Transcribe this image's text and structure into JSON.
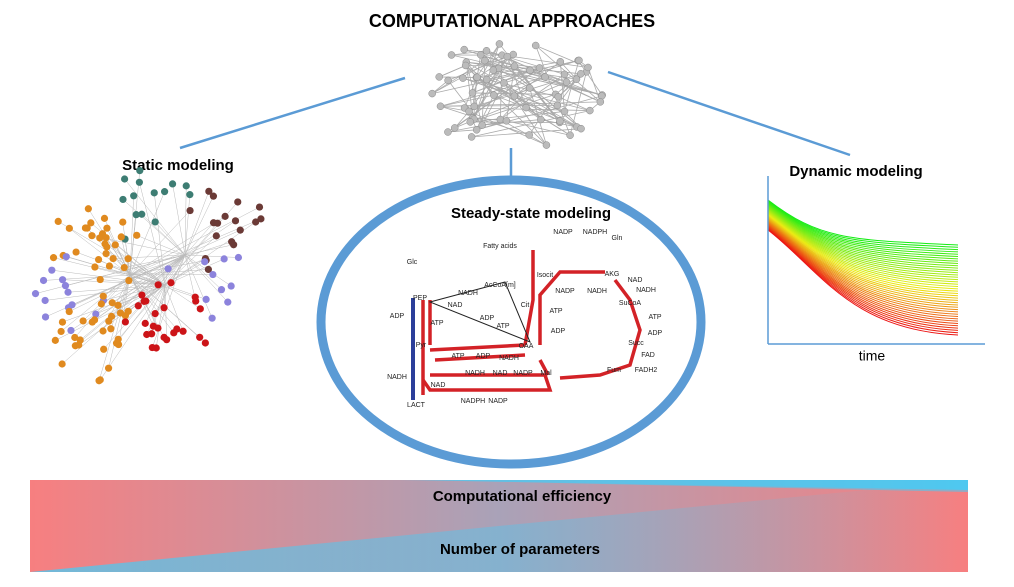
{
  "title": "COMPUTATIONAL APPROACHES",
  "panels": {
    "static": "Static modeling",
    "steady_state": "Steady-state modeling",
    "dynamic": "Dynamic modeling",
    "dynamic_axis": "time"
  },
  "pathway": {
    "labels": [
      "Fatty acids",
      "Gln",
      "Glc",
      "NADP",
      "NADPH",
      "Isocit",
      "AKG",
      "NADP",
      "NADH",
      "NAD",
      "NADH",
      "SuCoA",
      "AcCoA[m]",
      "NADH",
      "NAD",
      "Cit",
      "PEP",
      "ADP",
      "ATP",
      "ATP",
      "ADP",
      "ADP",
      "ATP",
      "ATP",
      "ADP",
      "Pyr",
      "OAA",
      "NADH",
      "Succ",
      "FAD",
      "FADH2",
      "Fum",
      "Mal",
      "ATP",
      "ADP",
      "NADH",
      "NAD",
      "NADH",
      "NAD",
      "NADP",
      "NADPH",
      "NADP",
      "LACT"
    ]
  },
  "gradient": {
    "top": "Computational efficiency",
    "bottom": "Number of parameters"
  }
}
